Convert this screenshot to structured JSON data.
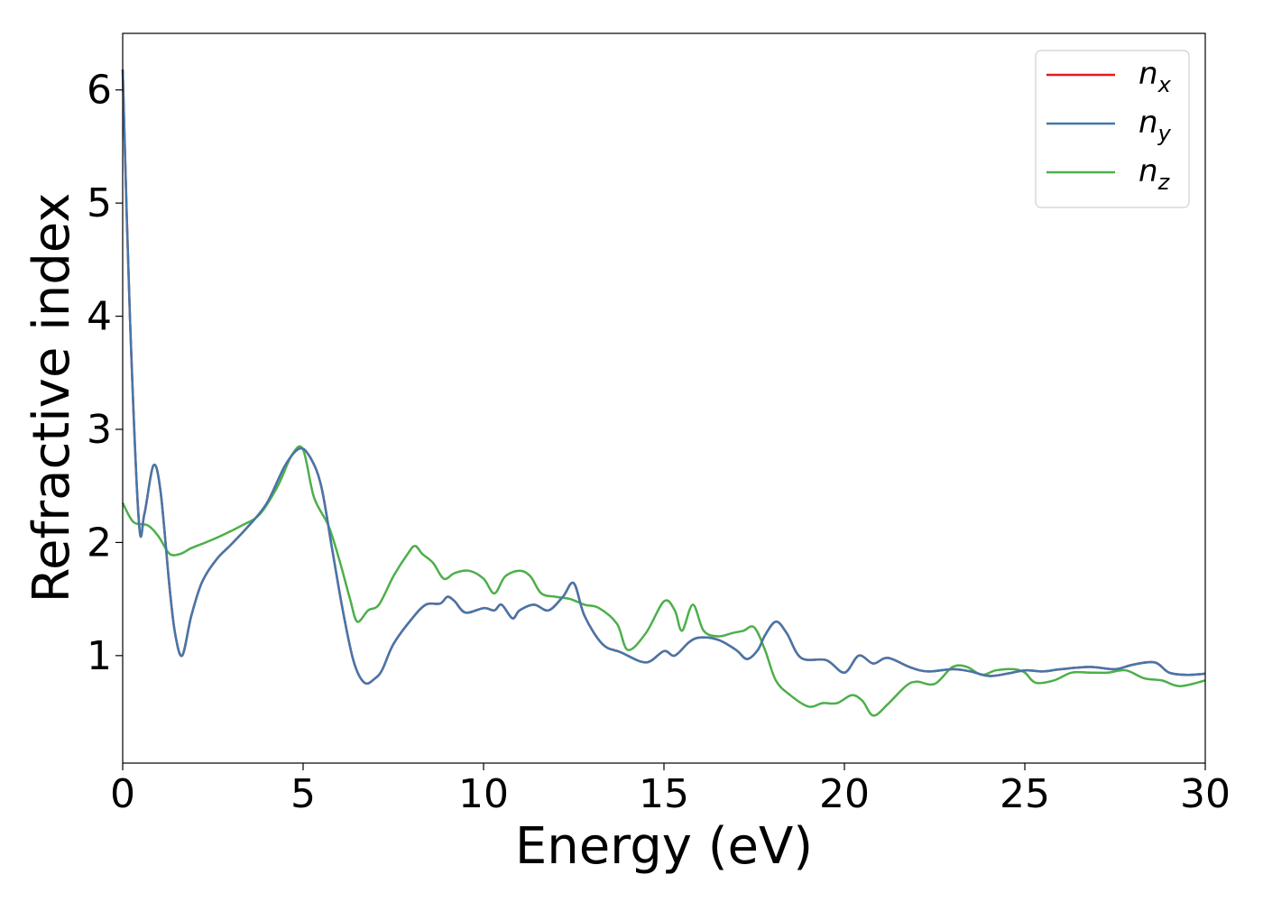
{
  "chart_data": {
    "type": "line",
    "title": "",
    "xlabel": "Energy (eV)",
    "ylabel": "Refractive index",
    "xlim": [
      0,
      30
    ],
    "ylim": [
      0.05,
      6.5
    ],
    "xticks": [
      0,
      5,
      10,
      15,
      20,
      25,
      30
    ],
    "xtick_labels": [
      "0",
      "5",
      "10",
      "15",
      "20",
      "25",
      "30"
    ],
    "yticks": [
      1,
      2,
      3,
      4,
      5,
      6
    ],
    "ytick_labels": [
      "1",
      "2",
      "3",
      "4",
      "5",
      "6"
    ],
    "grid": false,
    "legend_position": "top-right",
    "series": [
      {
        "name": "n_x",
        "legend_base": "n",
        "legend_sub": "x",
        "color": "#e41a1c",
        "x": [
          0,
          0.2,
          0.45,
          0.6,
          0.85,
          1.05,
          1.3,
          1.45,
          1.65,
          1.9,
          2.2,
          2.6,
          3.0,
          3.5,
          4.0,
          4.5,
          4.9,
          5.2,
          5.5,
          5.8,
          6.1,
          6.4,
          6.7,
          7.0,
          7.2,
          7.5,
          8.0,
          8.4,
          8.8,
          9.0,
          9.2,
          9.5,
          10.0,
          10.3,
          10.5,
          10.8,
          11.0,
          11.4,
          11.8,
          12.2,
          12.5,
          12.8,
          13.3,
          13.8,
          14.5,
          15.0,
          15.3,
          15.7,
          16.0,
          16.5,
          17.0,
          17.3,
          17.6,
          17.8,
          18.1,
          18.4,
          18.8,
          19.5,
          20.0,
          20.4,
          20.8,
          21.2,
          21.8,
          22.3,
          23.0,
          23.5,
          24.0,
          24.5,
          25.0,
          25.5,
          26.0,
          26.8,
          27.5,
          28.0,
          28.6,
          29.0,
          29.5,
          30.0
        ],
        "y": [
          6.18,
          4.0,
          2.18,
          2.25,
          2.68,
          2.45,
          1.6,
          1.2,
          1.0,
          1.35,
          1.65,
          1.85,
          1.98,
          2.15,
          2.35,
          2.68,
          2.83,
          2.75,
          2.5,
          1.95,
          1.4,
          0.95,
          0.76,
          0.8,
          0.88,
          1.1,
          1.32,
          1.45,
          1.46,
          1.52,
          1.48,
          1.38,
          1.42,
          1.4,
          1.45,
          1.33,
          1.4,
          1.45,
          1.4,
          1.52,
          1.64,
          1.35,
          1.1,
          1.03,
          0.94,
          1.04,
          1.0,
          1.12,
          1.16,
          1.14,
          1.05,
          0.97,
          1.05,
          1.18,
          1.3,
          1.2,
          0.98,
          0.96,
          0.85,
          1.0,
          0.93,
          0.98,
          0.9,
          0.86,
          0.88,
          0.86,
          0.82,
          0.84,
          0.87,
          0.86,
          0.88,
          0.9,
          0.88,
          0.92,
          0.94,
          0.85,
          0.83,
          0.84
        ]
      },
      {
        "name": "n_y",
        "legend_base": "n",
        "legend_sub": "y",
        "color": "#4477aa",
        "x": [
          0,
          0.2,
          0.45,
          0.6,
          0.85,
          1.05,
          1.3,
          1.45,
          1.65,
          1.9,
          2.2,
          2.6,
          3.0,
          3.5,
          4.0,
          4.5,
          4.9,
          5.2,
          5.5,
          5.8,
          6.1,
          6.4,
          6.7,
          7.0,
          7.2,
          7.5,
          8.0,
          8.4,
          8.8,
          9.0,
          9.2,
          9.5,
          10.0,
          10.3,
          10.5,
          10.8,
          11.0,
          11.4,
          11.8,
          12.2,
          12.5,
          12.8,
          13.3,
          13.8,
          14.5,
          15.0,
          15.3,
          15.7,
          16.0,
          16.5,
          17.0,
          17.3,
          17.6,
          17.8,
          18.1,
          18.4,
          18.8,
          19.5,
          20.0,
          20.4,
          20.8,
          21.2,
          21.8,
          22.3,
          23.0,
          23.5,
          24.0,
          24.5,
          25.0,
          25.5,
          26.0,
          26.8,
          27.5,
          28.0,
          28.6,
          29.0,
          29.5,
          30.0
        ],
        "y": [
          6.18,
          4.0,
          2.18,
          2.25,
          2.68,
          2.45,
          1.6,
          1.2,
          1.0,
          1.35,
          1.65,
          1.85,
          1.98,
          2.15,
          2.35,
          2.68,
          2.83,
          2.75,
          2.5,
          1.95,
          1.4,
          0.95,
          0.76,
          0.8,
          0.88,
          1.1,
          1.32,
          1.45,
          1.46,
          1.52,
          1.48,
          1.38,
          1.42,
          1.4,
          1.45,
          1.33,
          1.4,
          1.45,
          1.4,
          1.52,
          1.64,
          1.35,
          1.1,
          1.03,
          0.94,
          1.04,
          1.0,
          1.12,
          1.16,
          1.14,
          1.05,
          0.97,
          1.05,
          1.18,
          1.3,
          1.2,
          0.98,
          0.96,
          0.85,
          1.0,
          0.93,
          0.98,
          0.9,
          0.86,
          0.88,
          0.86,
          0.82,
          0.84,
          0.87,
          0.86,
          0.88,
          0.9,
          0.88,
          0.92,
          0.94,
          0.85,
          0.83,
          0.84
        ]
      },
      {
        "name": "n_z",
        "legend_base": "n",
        "legend_sub": "z",
        "color": "#4daf4a",
        "x": [
          0,
          0.3,
          0.7,
          1.0,
          1.3,
          1.6,
          1.9,
          2.3,
          2.8,
          3.3,
          3.8,
          4.3,
          4.7,
          5.0,
          5.3,
          5.7,
          6.0,
          6.3,
          6.5,
          6.8,
          7.1,
          7.5,
          7.9,
          8.1,
          8.3,
          8.6,
          8.9,
          9.2,
          9.6,
          10.0,
          10.3,
          10.6,
          11.0,
          11.3,
          11.6,
          12.0,
          12.4,
          12.8,
          13.2,
          13.7,
          14.0,
          14.5,
          15.0,
          15.3,
          15.5,
          15.8,
          16.1,
          16.5,
          16.9,
          17.2,
          17.5,
          17.8,
          18.1,
          18.5,
          19.0,
          19.4,
          19.8,
          20.2,
          20.5,
          20.8,
          21.2,
          21.7,
          22.0,
          22.5,
          23.0,
          23.4,
          23.8,
          24.2,
          24.7,
          25.0,
          25.3,
          25.8,
          26.3,
          26.8,
          27.3,
          27.8,
          28.3,
          28.8,
          29.3,
          30.0
        ],
        "y": [
          2.35,
          2.18,
          2.15,
          2.05,
          1.9,
          1.9,
          1.95,
          2.0,
          2.07,
          2.15,
          2.25,
          2.5,
          2.78,
          2.82,
          2.4,
          2.15,
          1.85,
          1.5,
          1.3,
          1.4,
          1.45,
          1.7,
          1.9,
          1.97,
          1.9,
          1.82,
          1.68,
          1.73,
          1.75,
          1.68,
          1.55,
          1.7,
          1.75,
          1.7,
          1.55,
          1.52,
          1.5,
          1.45,
          1.42,
          1.28,
          1.05,
          1.2,
          1.48,
          1.4,
          1.22,
          1.45,
          1.22,
          1.17,
          1.2,
          1.22,
          1.25,
          1.05,
          0.78,
          0.65,
          0.55,
          0.58,
          0.58,
          0.65,
          0.6,
          0.47,
          0.57,
          0.73,
          0.77,
          0.75,
          0.9,
          0.9,
          0.83,
          0.87,
          0.88,
          0.85,
          0.76,
          0.78,
          0.85,
          0.85,
          0.85,
          0.87,
          0.8,
          0.78,
          0.73,
          0.78
        ]
      }
    ]
  }
}
